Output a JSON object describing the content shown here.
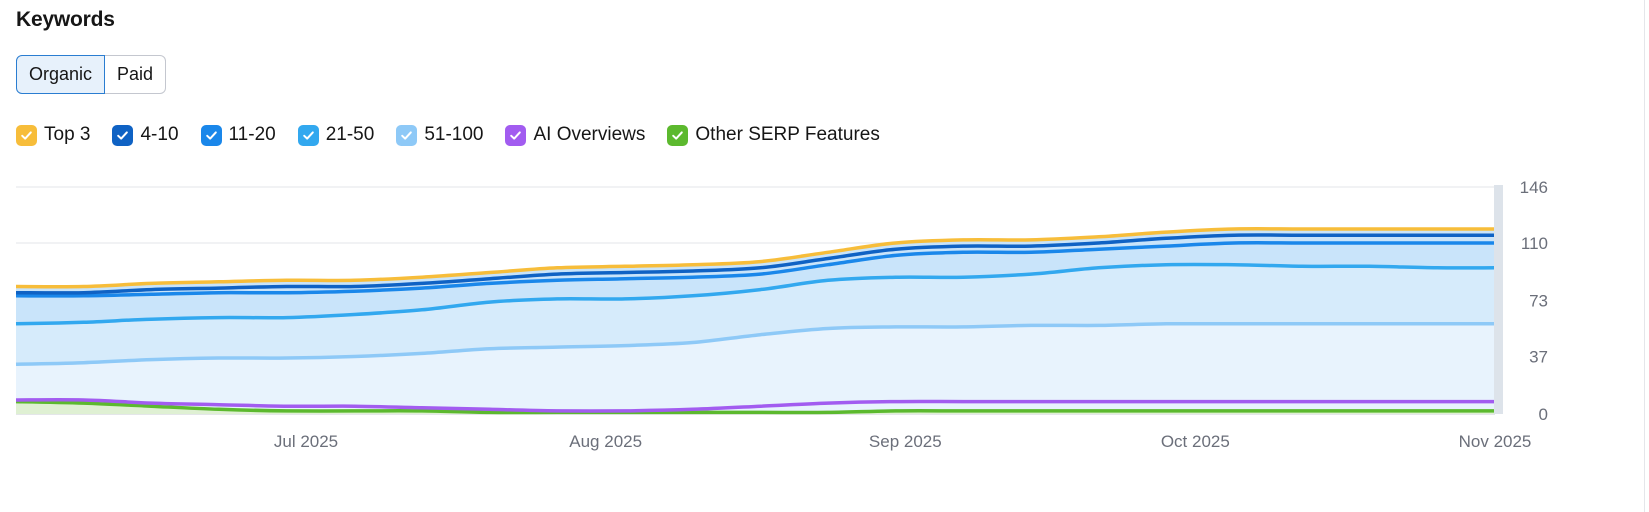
{
  "header": {
    "title": "Keywords"
  },
  "toggle": {
    "organic_label": "Organic",
    "paid_label": "Paid",
    "selected": "Organic"
  },
  "legend": [
    {
      "label": "Top 3",
      "color": "#f7bd3a",
      "checked": true
    },
    {
      "label": "4-10",
      "color": "#0f62c4",
      "checked": true
    },
    {
      "label": "11-20",
      "color": "#1a87ea",
      "checked": true
    },
    {
      "label": "21-50",
      "color": "#32a8ef",
      "checked": true
    },
    {
      "label": "51-100",
      "color": "#8ec9f7",
      "checked": true
    },
    {
      "label": "AI Overviews",
      "color": "#a25cf0",
      "checked": true
    },
    {
      "label": "Other SERP Features",
      "color": "#5cb92e",
      "checked": true
    }
  ],
  "chart_data": {
    "type": "area",
    "stacked": true,
    "x": [
      "2025-06-01",
      "2025-06-08",
      "2025-06-15",
      "2025-06-22",
      "2025-06-29",
      "2025-07-06",
      "2025-07-13",
      "2025-07-20",
      "2025-07-27",
      "2025-08-03",
      "2025-08-10",
      "2025-08-17",
      "2025-08-24",
      "2025-08-31",
      "2025-09-07",
      "2025-09-14",
      "2025-09-21",
      "2025-09-28",
      "2025-10-05",
      "2025-10-12",
      "2025-10-19",
      "2025-10-26",
      "2025-11-01"
    ],
    "x_ticks": [
      "Jul 2025",
      "Aug 2025",
      "Sep 2025",
      "Oct 2025",
      "Nov 2025"
    ],
    "x_tick_dates": [
      "2025-07-01",
      "2025-08-01",
      "2025-09-01",
      "2025-10-01",
      "2025-11-01"
    ],
    "y_ticks": [
      0,
      37,
      73,
      110,
      146
    ],
    "ylim": [
      0,
      146
    ],
    "y_axis_side": "right",
    "grid": true,
    "series": [
      {
        "name": "Top 3",
        "color": "#f7bd3a",
        "cumulative": [
          82,
          82,
          84,
          85,
          86,
          86,
          88,
          91,
          94,
          95,
          96,
          98,
          104,
          110,
          112,
          112,
          114,
          117,
          119,
          119,
          119,
          119,
          119
        ]
      },
      {
        "name": "4-10",
        "color": "#0f62c4",
        "cumulative": [
          78,
          78,
          80,
          81,
          82,
          82,
          84,
          87,
          90,
          91,
          92,
          94,
          100,
          106,
          108,
          108,
          110,
          113,
          115,
          115,
          115,
          115,
          115
        ]
      },
      {
        "name": "11-20",
        "color": "#1a87ea",
        "cumulative": [
          76,
          76,
          77,
          78,
          78,
          79,
          81,
          84,
          86,
          87,
          88,
          90,
          96,
          102,
          104,
          104,
          106,
          108,
          110,
          110,
          110,
          110,
          110
        ]
      },
      {
        "name": "21-50",
        "color": "#32a8ef",
        "cumulative": [
          58,
          59,
          61,
          62,
          62,
          64,
          67,
          72,
          74,
          74,
          76,
          80,
          86,
          88,
          88,
          90,
          94,
          96,
          96,
          95,
          95,
          94,
          94
        ]
      },
      {
        "name": "51-100",
        "color": "#8ec9f7",
        "cumulative": [
          32,
          33,
          35,
          36,
          36,
          37,
          39,
          42,
          43,
          44,
          46,
          51,
          55,
          56,
          56,
          57,
          57,
          58,
          58,
          58,
          58,
          58,
          58
        ]
      },
      {
        "name": "AI Overviews",
        "color": "#a25cf0",
        "values": [
          9,
          9,
          7,
          6,
          5,
          5,
          4,
          3,
          2,
          2,
          3,
          5,
          7,
          8,
          8,
          8,
          8,
          8,
          8,
          8,
          8,
          8,
          8
        ]
      },
      {
        "name": "Other SERP Features",
        "color": "#5cb92e",
        "values": [
          8,
          7,
          5,
          3,
          2,
          2,
          2,
          1,
          1,
          1,
          1,
          1,
          1,
          2,
          2,
          2,
          2,
          2,
          2,
          2,
          2,
          2,
          2
        ]
      }
    ]
  }
}
